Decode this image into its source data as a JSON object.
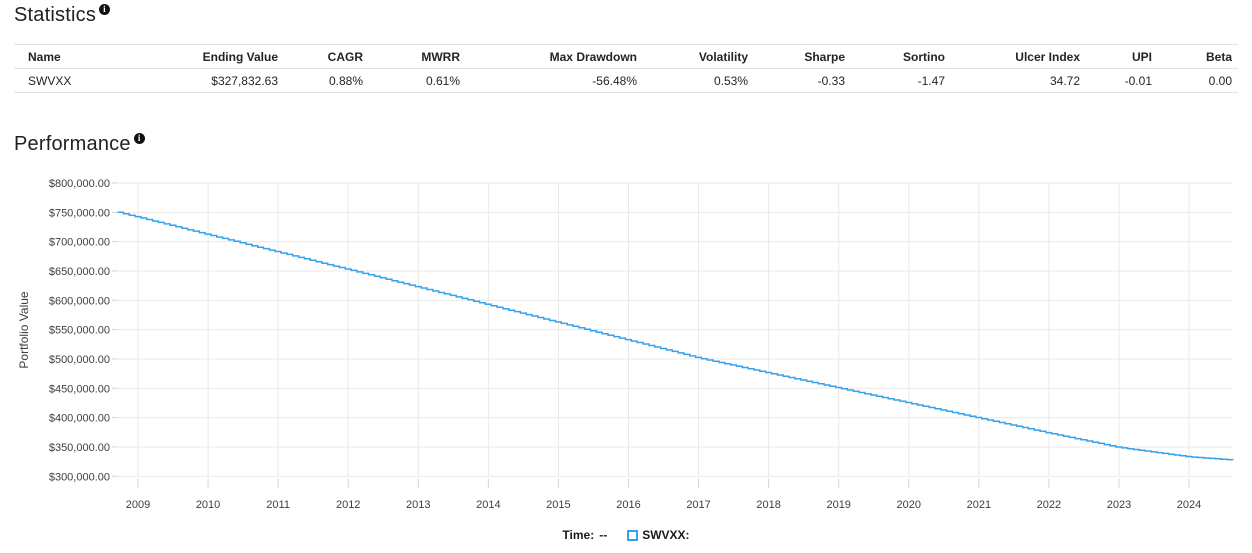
{
  "statistics": {
    "title": "Statistics",
    "columns": [
      "Name",
      "Ending Value",
      "CAGR",
      "MWRR",
      "Max Drawdown",
      "Volatility",
      "Sharpe",
      "Sortino",
      "Ulcer Index",
      "UPI",
      "Beta"
    ],
    "rows": [
      [
        "SWVXX",
        "$327,832.63",
        "0.88%",
        "0.61%",
        "-56.48%",
        "0.53%",
        "-0.33",
        "-1.47",
        "34.72",
        "-0.01",
        "0.00"
      ]
    ]
  },
  "performance": {
    "title": "Performance",
    "legend": {
      "time_label": "Time:",
      "time_value": "--",
      "series_label": "SWVXX:"
    }
  },
  "chart_data": {
    "type": "line",
    "title": "Performance",
    "xlabel": "",
    "ylabel": "Portfolio Value",
    "grid": true,
    "legend_position": "bottom",
    "x_range": [
      2008.708,
      2024.625
    ],
    "ylim": [
      300000,
      800000
    ],
    "x_ticks": [
      2009,
      2010,
      2011,
      2012,
      2013,
      2014,
      2015,
      2016,
      2017,
      2018,
      2019,
      2020,
      2021,
      2022,
      2023,
      2024
    ],
    "y_tick_values": [
      800000,
      750000,
      700000,
      650000,
      600000,
      550000,
      500000,
      450000,
      400000,
      350000,
      300000
    ],
    "colors": {
      "series_blue": "#36a2eb",
      "gridline": "#e9e9e9",
      "tick": "#d6d6d6",
      "axis_text": "#3c4043"
    },
    "series": [
      {
        "name": "SWVXX",
        "color": "#36a2eb",
        "style": "step-monthly",
        "points": [
          [
            2008.708,
            750000
          ],
          [
            2009.0,
            741500
          ],
          [
            2010.0,
            711700
          ],
          [
            2011.0,
            681900
          ],
          [
            2012.0,
            652200
          ],
          [
            2013.0,
            622200
          ],
          [
            2014.0,
            592000
          ],
          [
            2015.0,
            561900
          ],
          [
            2016.0,
            531800
          ],
          [
            2017.0,
            501500
          ],
          [
            2018.0,
            475900
          ],
          [
            2019.0,
            450300
          ],
          [
            2020.0,
            424700
          ],
          [
            2021.0,
            399100
          ],
          [
            2022.0,
            373500
          ],
          [
            2023.0,
            349000
          ],
          [
            2024.0,
            333000
          ],
          [
            2024.625,
            327832.63
          ]
        ]
      }
    ]
  }
}
